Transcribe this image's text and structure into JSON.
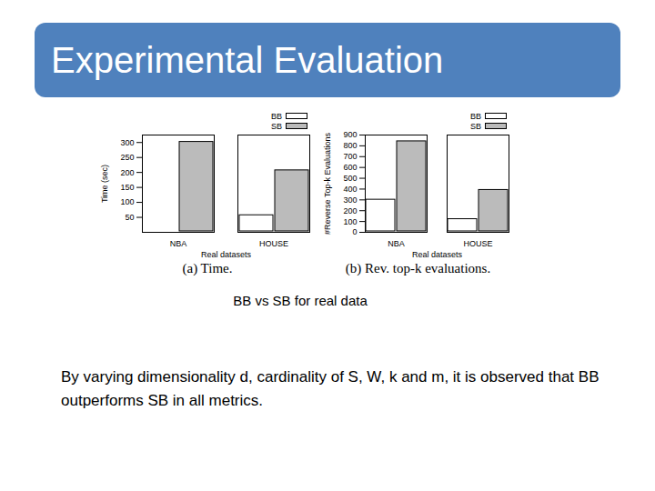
{
  "slide": {
    "title": "Experimental Evaluation",
    "caption": "BB vs SB for real data",
    "text": "By varying dimensionality d, cardinality of S, W, k and m, it is observed that BB outperforms SB in all metrics."
  },
  "chart_data": [
    {
      "type": "bar",
      "title": "(a) Time.",
      "x_label": "Real datasets",
      "y_label": "Time (sec)",
      "categories": [
        "NBA",
        "HOUSE"
      ],
      "series": [
        {
          "name": "BB",
          "color": "#ffffff",
          "values": [
            0,
            60
          ]
        },
        {
          "name": "SB",
          "color": "#bbbbbb",
          "values": [
            305,
            210
          ]
        }
      ],
      "ylim": [
        0,
        325
      ],
      "yticks": [
        50,
        100,
        150,
        200,
        250,
        300
      ],
      "legend": "top-right"
    },
    {
      "type": "bar",
      "title": "(b) Rev. top-k evaluations.",
      "x_label": "Real datasets",
      "y_label": "#Reverse Top-k Evaluations",
      "categories": [
        "NBA",
        "HOUSE"
      ],
      "series": [
        {
          "name": "BB",
          "color": "#ffffff",
          "values": [
            310,
            130
          ]
        },
        {
          "name": "SB",
          "color": "#bbbbbb",
          "values": [
            850,
            400
          ]
        }
      ],
      "ylim": [
        0,
        900
      ],
      "yticks": [
        0,
        100,
        200,
        300,
        400,
        500,
        600,
        700,
        800,
        900
      ],
      "legend": "top-right"
    }
  ]
}
